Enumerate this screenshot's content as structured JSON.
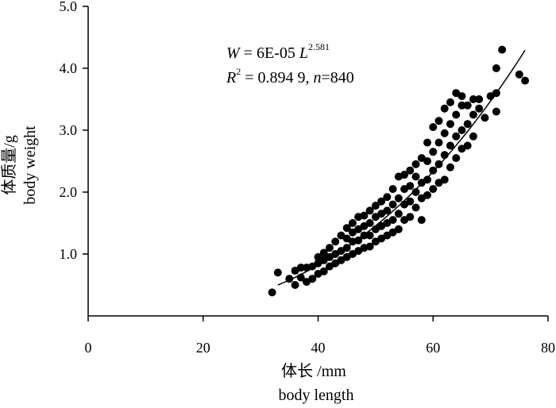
{
  "chart_data": {
    "type": "scatter",
    "xlim": [
      0,
      80
    ],
    "ylim": [
      0,
      5.0
    ],
    "x_ticks": [
      "0",
      "20",
      "40",
      "60",
      "80"
    ],
    "x_tick_values": [
      0,
      20,
      40,
      60,
      80
    ],
    "y_ticks": [
      "1.0",
      "2.0",
      "3.0",
      "4.0",
      "5.0"
    ],
    "y_tick_values": [
      1.0,
      2.0,
      3.0,
      4.0,
      5.0
    ],
    "xlabel_cn": "体长 /mm",
    "xlabel_en": "body length",
    "ylabel_cn": "体质量/g",
    "ylabel_en": "body weight",
    "grid": false,
    "legend": "none",
    "marker_color": "#000000",
    "annotation": {
      "line1_lhs": "W",
      "line1_eq": " = 6E-05 ",
      "line1_var": "L",
      "line1_exp": "2.581",
      "line2_r": "R",
      "line2_r_exp": "2",
      "line2_value": " = 0.894 9, ",
      "line2_n": "n",
      "line2_nval": "=840"
    },
    "fit": {
      "a": 6e-05,
      "b": 2.581,
      "x_range": [
        33,
        76
      ]
    },
    "points": [
      [
        32,
        0.38
      ],
      [
        33,
        0.7
      ],
      [
        35,
        0.6
      ],
      [
        36,
        0.5
      ],
      [
        36,
        0.73
      ],
      [
        37,
        0.62
      ],
      [
        37,
        0.78
      ],
      [
        38,
        0.55
      ],
      [
        38,
        0.78
      ],
      [
        39,
        0.6
      ],
      [
        39,
        0.8
      ],
      [
        40,
        0.68
      ],
      [
        40,
        0.85
      ],
      [
        40,
        0.95
      ],
      [
        41,
        0.72
      ],
      [
        41,
        0.9
      ],
      [
        41,
        1.02
      ],
      [
        42,
        0.8
      ],
      [
        42,
        0.95
      ],
      [
        42,
        1.1
      ],
      [
        43,
        0.85
      ],
      [
        43,
        1.0
      ],
      [
        43,
        1.2
      ],
      [
        44,
        0.9
      ],
      [
        44,
        1.05
      ],
      [
        44,
        1.3
      ],
      [
        45,
        0.95
      ],
      [
        45,
        1.1
      ],
      [
        45,
        1.25
      ],
      [
        45,
        1.42
      ],
      [
        46,
        1.0
      ],
      [
        46,
        1.2
      ],
      [
        46,
        1.35
      ],
      [
        46,
        1.5
      ],
      [
        47,
        1.05
      ],
      [
        47,
        1.22
      ],
      [
        47,
        1.4
      ],
      [
        47,
        1.6
      ],
      [
        48,
        1.1
      ],
      [
        48,
        1.3
      ],
      [
        48,
        1.45
      ],
      [
        48,
        1.62
      ],
      [
        49,
        1.12
      ],
      [
        49,
        1.3
      ],
      [
        49,
        1.5
      ],
      [
        49,
        1.7
      ],
      [
        50,
        1.2
      ],
      [
        50,
        1.4
      ],
      [
        50,
        1.6
      ],
      [
        50,
        1.78
      ],
      [
        51,
        1.25
      ],
      [
        51,
        1.45
      ],
      [
        51,
        1.65
      ],
      [
        51,
        1.85
      ],
      [
        52,
        1.3
      ],
      [
        52,
        1.5
      ],
      [
        52,
        1.7
      ],
      [
        52,
        1.92
      ],
      [
        53,
        1.35
      ],
      [
        53,
        1.55
      ],
      [
        53,
        1.8
      ],
      [
        53,
        2.05
      ],
      [
        54,
        1.4
      ],
      [
        54,
        1.65
      ],
      [
        54,
        1.9
      ],
      [
        54,
        2.25
      ],
      [
        55,
        1.55
      ],
      [
        55,
        1.8
      ],
      [
        55,
        2.05
      ],
      [
        55,
        2.28
      ],
      [
        56,
        1.6
      ],
      [
        56,
        1.85
      ],
      [
        56,
        2.1
      ],
      [
        56,
        2.35
      ],
      [
        57,
        1.75
      ],
      [
        57,
        2.0
      ],
      [
        57,
        2.25
      ],
      [
        57,
        2.45
      ],
      [
        58,
        1.55
      ],
      [
        58,
        1.9
      ],
      [
        58,
        2.15
      ],
      [
        58,
        2.55
      ],
      [
        59,
        1.95
      ],
      [
        59,
        2.2
      ],
      [
        59,
        2.5
      ],
      [
        59,
        2.8
      ],
      [
        60,
        2.05
      ],
      [
        60,
        2.35
      ],
      [
        60,
        2.65
      ],
      [
        60,
        3.05
      ],
      [
        61,
        2.15
      ],
      [
        61,
        2.45
      ],
      [
        61,
        2.8
      ],
      [
        61,
        3.15
      ],
      [
        62,
        2.2
      ],
      [
        62,
        2.6
      ],
      [
        62,
        2.95
      ],
      [
        62,
        3.35
      ],
      [
        63,
        2.4
      ],
      [
        63,
        2.75
      ],
      [
        63,
        3.1
      ],
      [
        63,
        3.45
      ],
      [
        64,
        2.55
      ],
      [
        64,
        2.9
      ],
      [
        64,
        3.25
      ],
      [
        64,
        3.6
      ],
      [
        65,
        2.7
      ],
      [
        65,
        3.0
      ],
      [
        65,
        3.4
      ],
      [
        65,
        3.55
      ],
      [
        66,
        2.75
      ],
      [
        66,
        3.1
      ],
      [
        66,
        3.4
      ],
      [
        67,
        2.9
      ],
      [
        67,
        3.25
      ],
      [
        67,
        3.5
      ],
      [
        68,
        3.35
      ],
      [
        68,
        3.5
      ],
      [
        69,
        3.2
      ],
      [
        70,
        3.55
      ],
      [
        71,
        3.3
      ],
      [
        71,
        3.6
      ],
      [
        71,
        4.0
      ],
      [
        72,
        4.3
      ],
      [
        75,
        3.9
      ],
      [
        76,
        3.8
      ]
    ]
  }
}
